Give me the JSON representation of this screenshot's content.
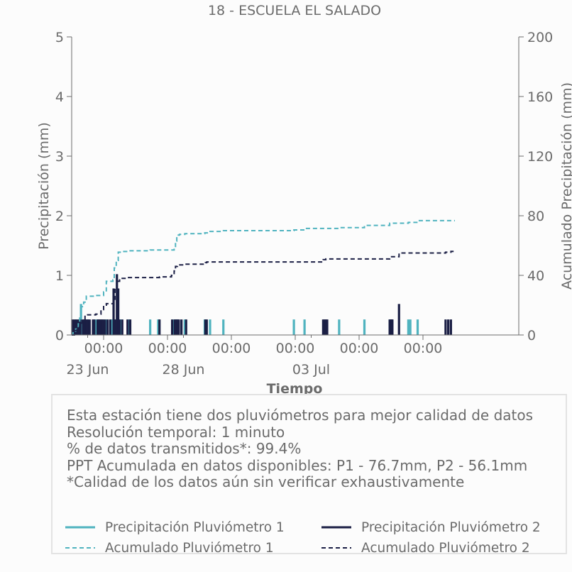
{
  "chart_data": {
    "type": "bar",
    "title": "18 - ESCUELA EL SALADO",
    "xlabel": "Tiempo",
    "ylabel": "Precipitación (mm)",
    "y2label": "Acumulado Precipitación (mm)",
    "ylim": [
      0,
      5
    ],
    "y2lim": [
      0,
      200
    ],
    "yticks": [
      "0",
      "1",
      "2",
      "3",
      "4",
      "5"
    ],
    "y2ticks": [
      "0",
      "40",
      "80",
      "120",
      "160",
      "200"
    ],
    "xlim": [
      "2025-06-22T00:00",
      "2025-07-06T00:00"
    ],
    "xticks_major": [
      {
        "label": "00:00",
        "date": "2025-06-23T00:00"
      },
      {
        "label": "00:00",
        "date": "2025-06-25T00:00"
      },
      {
        "label": "00:00",
        "date": "2025-06-27T00:00"
      },
      {
        "label": "00:00",
        "date": "2025-06-29T00:00"
      },
      {
        "label": "00:00",
        "date": "2025-07-01T00:00"
      },
      {
        "label": "00:00",
        "date": "2025-07-03T00:00"
      }
    ],
    "xticks_minor": [
      {
        "label": "23 Jun",
        "date": "2025-06-22T12:00"
      },
      {
        "label": "28 Jun",
        "date": "2025-06-25T12:00"
      },
      {
        "label": "03 Jul",
        "date": "2025-06-29T12:00"
      }
    ],
    "grid": false,
    "legend_position": "bottom",
    "series": [
      {
        "name": "Precipitación Pluviómetro 1",
        "kind": "bar",
        "axis": "left",
        "color": "#4fb3bf",
        "points": [
          [
            "2025-06-22T03:00",
            0.26
          ],
          [
            "2025-06-22T05:30",
            0.26
          ],
          [
            "2025-06-22T07:00",
            0.52
          ],
          [
            "2025-06-22T08:00",
            0.26
          ],
          [
            "2025-06-22T10:00",
            0.26
          ],
          [
            "2025-06-22T12:00",
            0.26
          ],
          [
            "2025-06-22T18:00",
            0.26
          ],
          [
            "2025-06-22T20:00",
            0.26
          ],
          [
            "2025-06-22T22:00",
            0.26
          ],
          [
            "2025-06-23T00:00",
            0.26
          ],
          [
            "2025-06-23T02:00",
            0.26
          ],
          [
            "2025-06-23T06:00",
            0.26
          ],
          [
            "2025-06-23T07:00",
            0.26
          ],
          [
            "2025-06-23T09:00",
            0.26
          ],
          [
            "2025-06-23T13:00",
            0.26
          ],
          [
            "2025-06-23T19:00",
            0.26
          ],
          [
            "2025-06-24T11:00",
            0.26
          ],
          [
            "2025-06-24T17:00",
            0.26
          ],
          [
            "2025-06-25T05:00",
            0.26
          ],
          [
            "2025-06-25T07:00",
            0.26
          ],
          [
            "2025-06-25T13:00",
            0.26
          ],
          [
            "2025-06-26T04:00",
            0.26
          ],
          [
            "2025-06-26T08:00",
            0.26
          ],
          [
            "2025-06-26T18:00",
            0.26
          ],
          [
            "2025-06-28T23:00",
            0.26
          ],
          [
            "2025-06-29T07:00",
            0.26
          ],
          [
            "2025-06-30T09:00",
            0.26
          ],
          [
            "2025-07-01T04:00",
            0.26
          ],
          [
            "2025-07-01T23:00",
            0.26
          ],
          [
            "2025-07-02T13:00",
            0.26
          ],
          [
            "2025-07-02T14:30",
            0.26
          ],
          [
            "2025-07-02T20:00",
            0.26
          ]
        ]
      },
      {
        "name": "Precipitación Pluviómetro 2",
        "kind": "bar",
        "axis": "left",
        "color": "#1b1f45",
        "points": [
          [
            "2025-06-22T00:30",
            0.26
          ],
          [
            "2025-06-22T02:00",
            0.26
          ],
          [
            "2025-06-22T03:30",
            0.26
          ],
          [
            "2025-06-22T05:00",
            0.26
          ],
          [
            "2025-06-22T06:30",
            0.26
          ],
          [
            "2025-06-22T08:30",
            0.26
          ],
          [
            "2025-06-22T09:30",
            0.26
          ],
          [
            "2025-06-22T10:30",
            0.26
          ],
          [
            "2025-06-22T11:30",
            0.26
          ],
          [
            "2025-06-22T12:30",
            0.26
          ],
          [
            "2025-06-22T13:30",
            0.26
          ],
          [
            "2025-06-22T16:00",
            0.26
          ],
          [
            "2025-06-22T17:00",
            0.26
          ],
          [
            "2025-06-22T19:30",
            0.26
          ],
          [
            "2025-06-22T20:30",
            0.26
          ],
          [
            "2025-06-22T21:30",
            0.26
          ],
          [
            "2025-06-22T22:30",
            0.26
          ],
          [
            "2025-06-22T23:30",
            0.26
          ],
          [
            "2025-06-23T01:00",
            0.26
          ],
          [
            "2025-06-23T03:00",
            0.26
          ],
          [
            "2025-06-23T05:00",
            0.26
          ],
          [
            "2025-06-23T07:30",
            0.78
          ],
          [
            "2025-06-23T08:30",
            0.26
          ],
          [
            "2025-06-23T10:00",
            1.02
          ],
          [
            "2025-06-23T11:00",
            0.78
          ],
          [
            "2025-06-23T12:00",
            0.26
          ],
          [
            "2025-06-23T14:00",
            0.26
          ],
          [
            "2025-06-23T18:00",
            0.26
          ],
          [
            "2025-06-23T20:00",
            0.26
          ],
          [
            "2025-06-24T18:00",
            0.26
          ],
          [
            "2025-06-25T03:30",
            0.26
          ],
          [
            "2025-06-25T05:30",
            0.26
          ],
          [
            "2025-06-25T06:30",
            0.26
          ],
          [
            "2025-06-25T07:30",
            0.26
          ],
          [
            "2025-06-25T08:30",
            0.26
          ],
          [
            "2025-06-25T10:30",
            0.26
          ],
          [
            "2025-06-25T14:00",
            0.26
          ],
          [
            "2025-06-26T04:30",
            0.26
          ],
          [
            "2025-06-26T05:30",
            0.26
          ],
          [
            "2025-06-29T21:00",
            0.26
          ],
          [
            "2025-06-29T22:00",
            0.26
          ],
          [
            "2025-06-29T23:00",
            0.26
          ],
          [
            "2025-06-30T00:00",
            0.26
          ],
          [
            "2025-07-01T23:00",
            0.26
          ],
          [
            "2025-07-02T00:00",
            0.26
          ],
          [
            "2025-07-02T00:30",
            0.26
          ],
          [
            "2025-07-02T01:00",
            0.26
          ],
          [
            "2025-07-02T06:00",
            0.52
          ],
          [
            "2025-07-03T17:00",
            0.26
          ],
          [
            "2025-07-03T19:00",
            0.26
          ],
          [
            "2025-07-03T21:00",
            0.26
          ]
        ]
      },
      {
        "name": "Acumulado Pluviómetro 1",
        "kind": "step",
        "style": "dashed",
        "axis": "right",
        "color": "#4fb3bf",
        "points": [
          [
            "2025-06-22T00:00",
            0
          ],
          [
            "2025-06-22T01:00",
            2
          ],
          [
            "2025-06-22T03:00",
            4
          ],
          [
            "2025-06-22T05:00",
            8
          ],
          [
            "2025-06-22T06:00",
            12
          ],
          [
            "2025-06-22T07:00",
            19
          ],
          [
            "2025-06-22T09:00",
            22
          ],
          [
            "2025-06-22T11:00",
            26
          ],
          [
            "2025-06-22T18:00",
            26.5
          ],
          [
            "2025-06-23T00:00",
            29
          ],
          [
            "2025-06-23T02:00",
            36
          ],
          [
            "2025-06-23T07:00",
            37
          ],
          [
            "2025-06-23T08:00",
            45
          ],
          [
            "2025-06-23T09:30",
            50
          ],
          [
            "2025-06-23T11:00",
            55.5
          ],
          [
            "2025-06-23T14:00",
            56
          ],
          [
            "2025-06-23T19:00",
            56.5
          ],
          [
            "2025-06-24T11:00",
            57
          ],
          [
            "2025-06-24T20:00",
            57
          ],
          [
            "2025-06-25T05:00",
            58
          ],
          [
            "2025-06-25T06:00",
            63
          ],
          [
            "2025-06-25T07:00",
            67
          ],
          [
            "2025-06-25T09:00",
            67.5
          ],
          [
            "2025-06-25T13:00",
            68
          ],
          [
            "2025-06-26T04:00",
            68.5
          ],
          [
            "2025-06-26T08:00",
            69.5
          ],
          [
            "2025-06-26T18:00",
            70
          ],
          [
            "2025-06-28T23:00",
            70.5
          ],
          [
            "2025-06-29T07:00",
            71.5
          ],
          [
            "2025-06-30T09:00",
            72
          ],
          [
            "2025-07-01T04:00",
            73.5
          ],
          [
            "2025-07-01T23:00",
            75
          ],
          [
            "2025-07-02T13:00",
            75.5
          ],
          [
            "2025-07-02T20:00",
            76.7
          ],
          [
            "2025-07-04T00:00",
            76.7
          ]
        ]
      },
      {
        "name": "Acumulado Pluviómetro 2",
        "kind": "step",
        "style": "dashed",
        "axis": "right",
        "color": "#1b1f45",
        "points": [
          [
            "2025-06-22T00:00",
            0
          ],
          [
            "2025-06-22T02:00",
            3
          ],
          [
            "2025-06-22T04:00",
            5
          ],
          [
            "2025-06-22T06:00",
            8
          ],
          [
            "2025-06-22T08:00",
            10
          ],
          [
            "2025-06-22T10:00",
            13
          ],
          [
            "2025-06-22T12:00",
            13.5
          ],
          [
            "2025-06-22T18:00",
            14
          ],
          [
            "2025-06-22T22:00",
            17
          ],
          [
            "2025-06-23T00:00",
            20
          ],
          [
            "2025-06-23T02:00",
            21
          ],
          [
            "2025-06-23T07:30",
            24
          ],
          [
            "2025-06-23T08:30",
            31
          ],
          [
            "2025-06-23T10:00",
            36
          ],
          [
            "2025-06-23T12:00",
            38
          ],
          [
            "2025-06-23T18:00",
            38.5
          ],
          [
            "2025-06-24T18:00",
            39
          ],
          [
            "2025-06-25T03:00",
            40
          ],
          [
            "2025-06-25T05:00",
            43
          ],
          [
            "2025-06-25T06:00",
            46
          ],
          [
            "2025-06-25T07:30",
            47
          ],
          [
            "2025-06-25T14:00",
            47.5
          ],
          [
            "2025-06-26T04:30",
            48.5
          ],
          [
            "2025-06-26T05:30",
            49
          ],
          [
            "2025-06-29T21:00",
            50.5
          ],
          [
            "2025-06-29T23:00",
            51
          ],
          [
            "2025-07-01T23:00",
            52.5
          ],
          [
            "2025-07-02T06:00",
            55
          ],
          [
            "2025-07-03T17:00",
            55.5
          ],
          [
            "2025-07-03T21:00",
            56.1
          ],
          [
            "2025-07-04T00:00",
            56.1
          ]
        ]
      }
    ]
  },
  "info": {
    "lines": [
      "Esta estación tiene dos pluviómetros para mejor calidad de datos",
      "Resolución temporal: 1 minuto",
      "% de datos transmitidos*: 99.4%",
      "PPT Acumulada en datos disponibles: P1 - 76.7mm, P2 - 56.1mm",
      "*Calidad de los datos aún sin verificar exhaustivamente"
    ]
  },
  "legend": {
    "items": [
      {
        "label": "Precipitación Pluviómetro 1",
        "color": "#4fb3bf",
        "style": "solid"
      },
      {
        "label": "Precipitación Pluviómetro 2",
        "color": "#1b1f45",
        "style": "solid"
      },
      {
        "label": "Acumulado Pluviómetro 1",
        "color": "#4fb3bf",
        "style": "dashed"
      },
      {
        "label": "Acumulado Pluviómetro 2",
        "color": "#1b1f45",
        "style": "dashed"
      }
    ]
  },
  "colors": {
    "axis": "#6b6b6b",
    "text": "#6b6b6b",
    "background": "#fcfcfc",
    "box_border": "#e3e3e3"
  }
}
